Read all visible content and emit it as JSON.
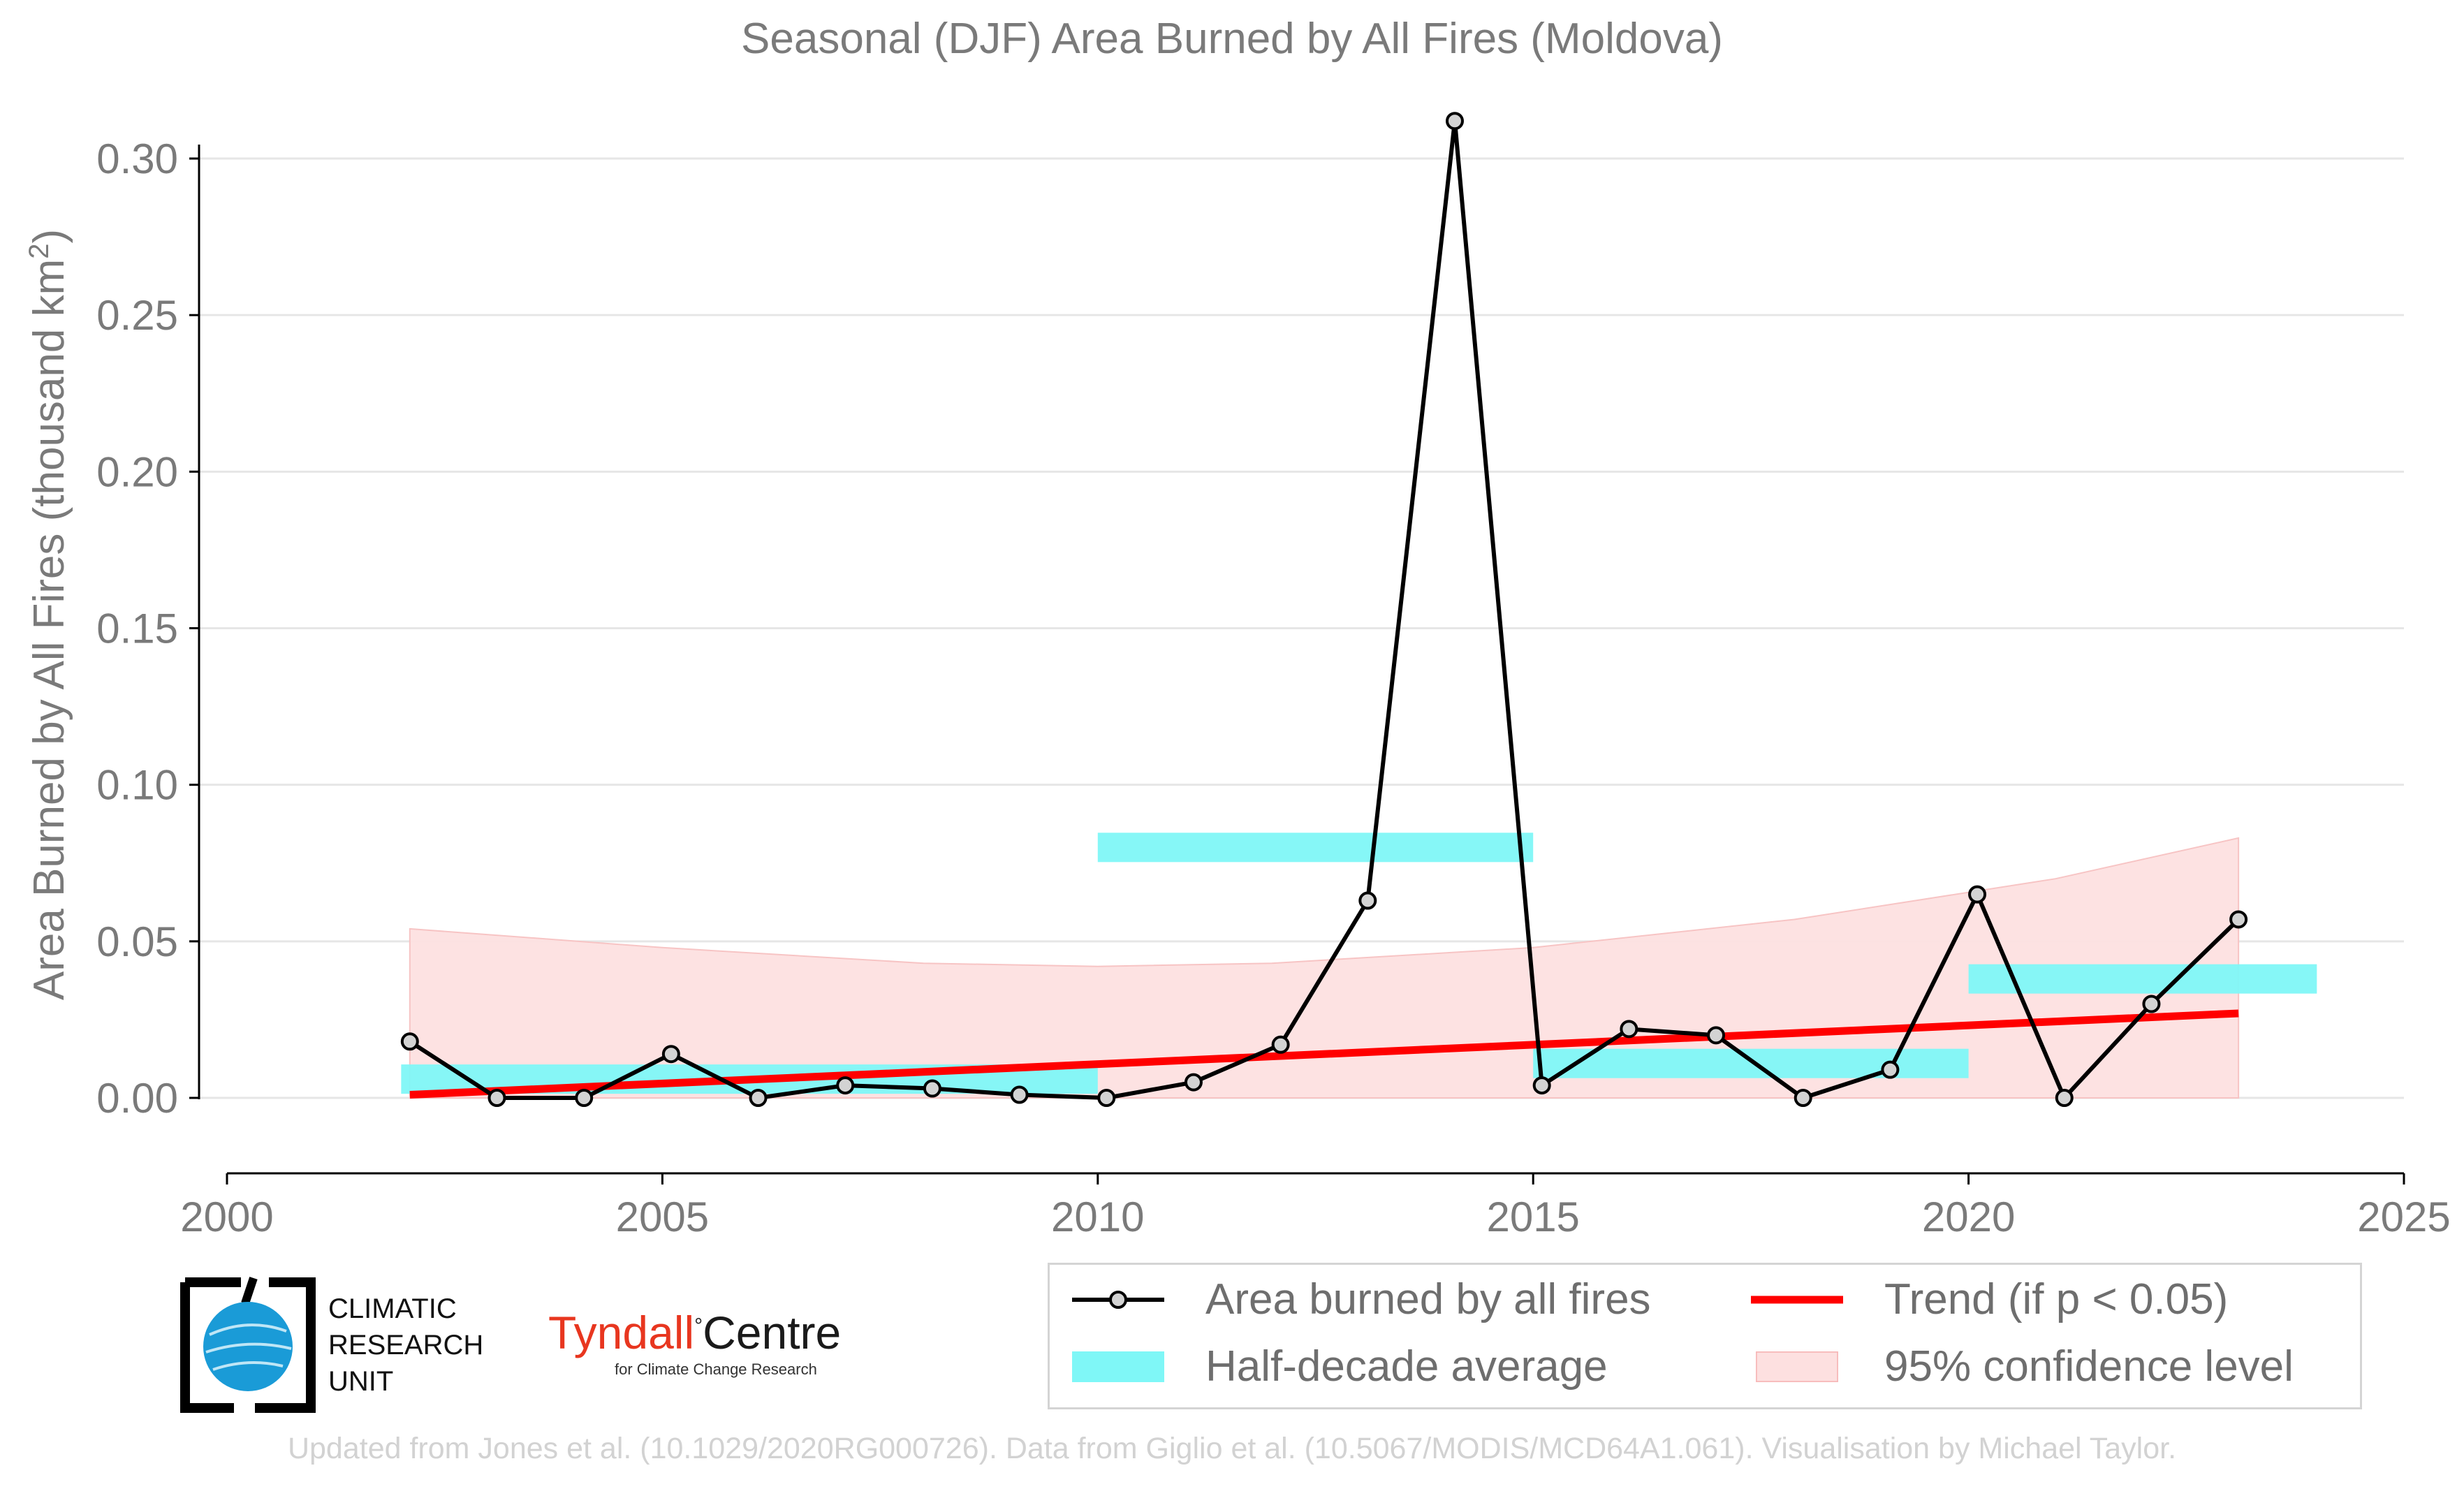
{
  "title": "Seasonal (DJF) Area Burned by All Fires (Moldova)",
  "ylabel_main": "Area Burned by All Fires (thousand km",
  "ylabel_sup": "2",
  "ylabel_end": ")",
  "footer": "Updated from Jones et al. (10.1029/2020RG000726). Data from Giglio et al. (10.5067/MODIS/MCD64A1.061). Visualisation by Michael Taylor.",
  "logos": {
    "cru_line1": "CLIMATIC",
    "cru_line2": "RESEARCH",
    "cru_line3": "UNIT",
    "tyndall_red": "Tyndall",
    "tyndall_deg": "°",
    "tyndall_black": "Centre",
    "tyndall_sub": "for Climate Change Research"
  },
  "legend": {
    "series": "Area burned by all fires",
    "trend": "Trend (if p < 0.05)",
    "half_decade": "Half-decade average",
    "confidence": "95% confidence level"
  },
  "colors": {
    "series": "#000000",
    "marker_fill": "#d3d3d3",
    "trend": "#ff0000",
    "half_decade": "#7ff7f7",
    "confidence": "#fde0e0",
    "grid": "#e6e6e6",
    "text": "#7a7a7a"
  },
  "chart_data": {
    "type": "line",
    "title": "Seasonal (DJF) Area Burned by All Fires (Moldova)",
    "xlabel": "",
    "ylabel": "Area Burned by All Fires (thousand km2)",
    "xlim": [
      2000,
      2025
    ],
    "ylim": [
      -0.025,
      0.31
    ],
    "x_ticks": [
      2000,
      2005,
      2010,
      2015,
      2020,
      2025
    ],
    "y_ticks": [
      0.0,
      0.05,
      0.1,
      0.15,
      0.2,
      0.25,
      0.3
    ],
    "y_tick_labels": [
      "0.00",
      "0.05",
      "0.10",
      "0.15",
      "0.20",
      "0.25",
      "0.30"
    ],
    "grid": "horizontal",
    "legend_position": "bottom-right",
    "series": [
      {
        "name": "Area burned by all fires",
        "x": [
          2002.1,
          2003.1,
          2004.1,
          2005.1,
          2006.1,
          2007.1,
          2008.1,
          2009.1,
          2010.1,
          2011.1,
          2012.1,
          2013.1,
          2014.1,
          2015.1,
          2016.1,
          2017.1,
          2018.1,
          2019.1,
          2020.1,
          2021.1,
          2022.1,
          2023.1
        ],
        "values": [
          0.018,
          0.0,
          0.0,
          0.014,
          0.0,
          0.004,
          0.003,
          0.001,
          0.0,
          0.005,
          0.017,
          0.063,
          0.312,
          0.004,
          0.022,
          0.02,
          0.0,
          0.009,
          0.065,
          0.0,
          0.03,
          0.057
        ]
      }
    ],
    "half_decade_average": [
      {
        "x_start": 2002,
        "x_end": 2010,
        "value": 0.006
      },
      {
        "x_start": 2010,
        "x_end": 2015,
        "value": 0.08
      },
      {
        "x_start": 2015,
        "x_end": 2020,
        "value": 0.011
      },
      {
        "x_start": 2020,
        "x_end": 2024,
        "value": 0.038
      }
    ],
    "trend": {
      "x_start": 2002.1,
      "x_end": 2023.1,
      "y_start": 0.001,
      "y_end": 0.027
    },
    "confidence_band": {
      "x": [
        2002.1,
        2005,
        2008,
        2010,
        2012,
        2015,
        2018,
        2021,
        2023.1
      ],
      "upper": [
        0.054,
        0.048,
        0.043,
        0.042,
        0.043,
        0.048,
        0.057,
        0.07,
        0.083
      ],
      "lower": [
        0.0,
        0.0,
        0.0,
        0.0,
        0.0,
        0.0,
        0.0,
        0.0,
        0.0
      ]
    }
  }
}
